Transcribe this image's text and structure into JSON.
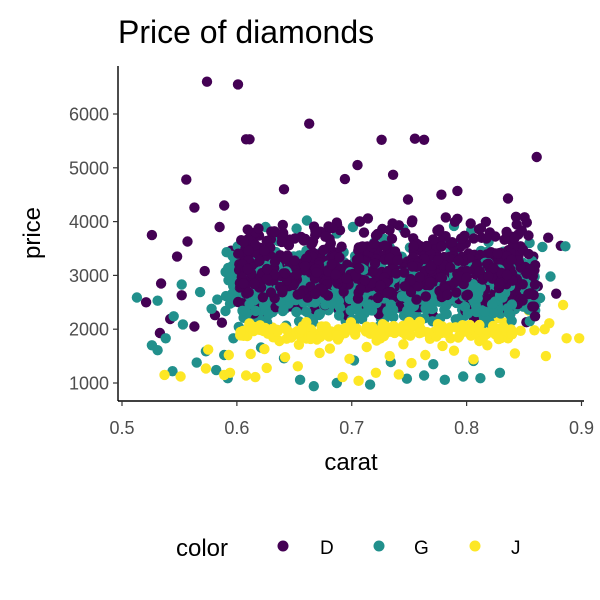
{
  "chart_data": {
    "type": "scatter",
    "title": "Price of diamonds",
    "xlabel": "carat",
    "ylabel": "price",
    "xlim": [
      0.5,
      0.9
    ],
    "ylim": [
      700,
      6800
    ],
    "xticks": [
      0.5,
      0.6,
      0.7,
      0.8,
      0.9
    ],
    "xtick_labels": [
      "0.5",
      "0.6",
      "0.7",
      "0.8",
      "0.9"
    ],
    "yticks": [
      1000,
      2000,
      3000,
      4000,
      5000,
      6000
    ],
    "ytick_labels": [
      "1000",
      "2000",
      "3000",
      "4000",
      "5000",
      "6000"
    ],
    "grid": false,
    "legend": {
      "title": "color",
      "position": "bottom"
    },
    "series": [
      {
        "name": "D",
        "color": "#440154",
        "points": [
          [
            0.574,
            6600
          ],
          [
            0.601,
            6550
          ],
          [
            0.608,
            5530
          ],
          [
            0.611,
            5530
          ],
          [
            0.663,
            5820
          ],
          [
            0.726,
            5520
          ],
          [
            0.755,
            5540
          ],
          [
            0.763,
            5520
          ],
          [
            0.861,
            5200
          ],
          [
            0.556,
            4780
          ],
          [
            0.705,
            5050
          ],
          [
            0.736,
            4870
          ],
          [
            0.694,
            4790
          ],
          [
            0.641,
            4600
          ],
          [
            0.749,
            4410
          ],
          [
            0.792,
            4570
          ],
          [
            0.836,
            4430
          ],
          [
            0.778,
            4500
          ],
          [
            0.843,
            4090
          ],
          [
            0.526,
            3750
          ],
          [
            0.557,
            3630
          ],
          [
            0.585,
            3900
          ],
          [
            0.563,
            4260
          ],
          [
            0.589,
            4300
          ],
          [
            0.534,
            2850
          ],
          [
            0.548,
            3350
          ],
          [
            0.572,
            3080
          ],
          [
            0.595,
            3460
          ],
          [
            0.521,
            2500
          ],
          [
            0.552,
            2630
          ],
          [
            0.882,
            3550
          ],
          [
            0.871,
            3700
          ],
          [
            0.858,
            3350
          ],
          [
            0.848,
            3000
          ],
          [
            0.862,
            2800
          ],
          [
            0.878,
            2660
          ],
          [
            0.838,
            2280
          ],
          [
            0.852,
            2130
          ],
          [
            0.581,
            2260
          ],
          [
            0.608,
            2650
          ],
          [
            0.542,
            2190
          ],
          [
            0.615,
            2010
          ],
          [
            0.533,
            1930
          ],
          [
            0.563,
            2050
          ],
          [
            0.587,
            2120
          ],
          [
            0.623,
            2260
          ],
          [
            0.619,
            3050
          ]
        ]
      },
      {
        "name": "G",
        "color": "#21908C",
        "points": [
          [
            0.513,
            2590
          ],
          [
            0.531,
            2530
          ],
          [
            0.526,
            1700
          ],
          [
            0.538,
            1830
          ],
          [
            0.545,
            2240
          ],
          [
            0.531,
            1610
          ],
          [
            0.553,
            2090
          ],
          [
            0.565,
            1380
          ],
          [
            0.544,
            1220
          ],
          [
            0.573,
            1590
          ],
          [
            0.582,
            1240
          ],
          [
            0.592,
            1090
          ],
          [
            0.621,
            1660
          ],
          [
            0.655,
            1060
          ],
          [
            0.667,
            940
          ],
          [
            0.687,
            1000
          ],
          [
            0.716,
            970
          ],
          [
            0.748,
            1080
          ],
          [
            0.763,
            1140
          ],
          [
            0.781,
            1060
          ],
          [
            0.797,
            1120
          ],
          [
            0.812,
            1090
          ],
          [
            0.829,
            1190
          ],
          [
            0.552,
            2830
          ],
          [
            0.568,
            2690
          ],
          [
            0.578,
            2380
          ],
          [
            0.596,
            2660
          ],
          [
            0.609,
            2850
          ],
          [
            0.617,
            2340
          ],
          [
            0.625,
            2150
          ],
          [
            0.603,
            3300
          ],
          [
            0.613,
            3780
          ],
          [
            0.625,
            3900
          ],
          [
            0.636,
            3640
          ],
          [
            0.645,
            3150
          ],
          [
            0.658,
            2950
          ],
          [
            0.673,
            3420
          ],
          [
            0.687,
            3780
          ],
          [
            0.701,
            3900
          ],
          [
            0.714,
            3520
          ],
          [
            0.728,
            3680
          ],
          [
            0.745,
            3860
          ],
          [
            0.758,
            3520
          ],
          [
            0.771,
            3650
          ],
          [
            0.789,
            3920
          ],
          [
            0.804,
            3840
          ],
          [
            0.819,
            3620
          ],
          [
            0.832,
            3440
          ],
          [
            0.845,
            3170
          ],
          [
            0.857,
            3040
          ],
          [
            0.866,
            3530
          ],
          [
            0.886,
            3540
          ],
          [
            0.873,
            2980
          ],
          [
            0.864,
            2580
          ],
          [
            0.843,
            2430
          ],
          [
            0.828,
            2610
          ],
          [
            0.817,
            2390
          ],
          [
            0.652,
            3870
          ],
          [
            0.661,
            4020
          ],
          [
            0.638,
            3250
          ],
          [
            0.632,
            2720
          ],
          [
            0.648,
            2560
          ],
          [
            0.671,
            2440
          ],
          [
            0.694,
            2540
          ],
          [
            0.732,
            2460
          ],
          [
            0.776,
            2510
          ],
          [
            0.805,
            2480
          ],
          [
            0.824,
            2230
          ],
          [
            0.641,
            1460
          ],
          [
            0.702,
            1420
          ],
          [
            0.734,
            1390
          ],
          [
            0.771,
            1350
          ],
          [
            0.806,
            1410
          ],
          [
            0.597,
            1830
          ],
          [
            0.628,
            1940
          ],
          [
            0.583,
            2550
          ],
          [
            0.599,
            2930
          ],
          [
            0.618,
            3380
          ],
          [
            0.836,
            2740
          ],
          [
            0.852,
            2860
          ],
          [
            0.801,
            3240
          ],
          [
            0.784,
            3050
          ],
          [
            0.662,
            3180
          ],
          [
            0.739,
            3300
          ],
          [
            0.589,
            1520
          ]
        ]
      },
      {
        "name": "J",
        "color": "#FDE725",
        "points": [
          [
            0.537,
            1150
          ],
          [
            0.551,
            1120
          ],
          [
            0.589,
            1150
          ],
          [
            0.608,
            1140
          ],
          [
            0.616,
            1110
          ],
          [
            0.626,
            1280
          ],
          [
            0.653,
            1310
          ],
          [
            0.672,
            1560
          ],
          [
            0.692,
            1110
          ],
          [
            0.706,
            1040
          ],
          [
            0.721,
            1190
          ],
          [
            0.741,
            1160
          ],
          [
            0.752,
            1370
          ],
          [
            0.764,
            1520
          ],
          [
            0.789,
            1600
          ],
          [
            0.806,
            1440
          ],
          [
            0.818,
            1700
          ],
          [
            0.836,
            1830
          ],
          [
            0.842,
            1550
          ],
          [
            0.869,
            1500
          ],
          [
            0.859,
            1980
          ],
          [
            0.868,
            2000
          ],
          [
            0.872,
            2110
          ],
          [
            0.887,
            1830
          ],
          [
            0.898,
            1830
          ],
          [
            0.884,
            2450
          ],
          [
            0.573,
            1270
          ],
          [
            0.594,
            1190
          ],
          [
            0.575,
            1620
          ],
          [
            0.593,
            1520
          ],
          [
            0.624,
            1630
          ],
          [
            0.637,
            1780
          ],
          [
            0.648,
            1900
          ],
          [
            0.662,
            1870
          ],
          [
            0.675,
            1960
          ],
          [
            0.688,
            1810
          ],
          [
            0.703,
            1900
          ],
          [
            0.716,
            1920
          ],
          [
            0.728,
            1870
          ],
          [
            0.739,
            1980
          ],
          [
            0.751,
            1880
          ],
          [
            0.762,
            1960
          ],
          [
            0.774,
            1900
          ],
          [
            0.786,
            1830
          ],
          [
            0.797,
            1960
          ],
          [
            0.809,
            2070
          ],
          [
            0.822,
            2040
          ],
          [
            0.833,
            2120
          ],
          [
            0.847,
            1970
          ],
          [
            0.654,
            1710
          ],
          [
            0.681,
            1640
          ],
          [
            0.713,
            1670
          ],
          [
            0.745,
            1720
          ],
          [
            0.779,
            1690
          ],
          [
            0.811,
            1780
          ],
          [
            0.631,
            2030
          ],
          [
            0.696,
            2060
          ],
          [
            0.758,
            2080
          ],
          [
            0.828,
            2210
          ],
          [
            0.854,
            2350
          ],
          [
            0.612,
            1540
          ],
          [
            0.642,
            1480
          ],
          [
            0.698,
            1450
          ],
          [
            0.733,
            1500
          ]
        ]
      }
    ],
    "dense_clouds": [
      {
        "series": 1,
        "x": [
          0.59,
          0.86
        ],
        "y": [
          1900,
          3650
        ],
        "count": 650,
        "seed": 11
      },
      {
        "series": 0,
        "x": [
          0.6,
          0.86
        ],
        "y": [
          2150,
          4150
        ],
        "count": 580,
        "seed": 23
      },
      {
        "series": 1,
        "x": [
          0.6,
          0.84
        ],
        "y": [
          2100,
          3300
        ],
        "count": 280,
        "seed": 37
      },
      {
        "series": 2,
        "x": [
          0.6,
          0.84
        ],
        "y": [
          1780,
          2150
        ],
        "count": 160,
        "seed": 41
      },
      {
        "series": 0,
        "x": [
          0.6,
          0.84
        ],
        "y": [
          2500,
          3400
        ],
        "count": 220,
        "seed": 53
      }
    ]
  }
}
